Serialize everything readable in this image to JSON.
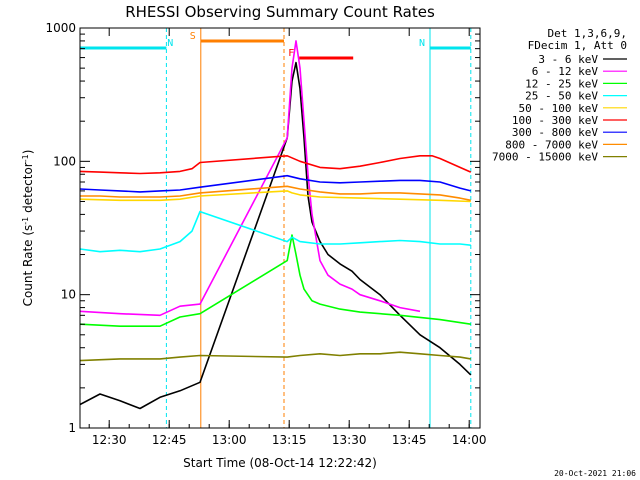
{
  "chart_data": {
    "type": "line",
    "title": "RHESSI Observing Summary Count Rates",
    "xlabel": "Start Time (08-Oct-14 12:22:42)",
    "ylabel_parts": [
      "Count Rate (s",
      "-1",
      " detector",
      "-1",
      ")"
    ],
    "yscale": "log",
    "ylim": [
      1,
      1000
    ],
    "xlim_minutes": [
      0,
      100
    ],
    "x_ticks": [
      {
        "label": "12:30",
        "minute": 7.3
      },
      {
        "label": "12:45",
        "minute": 22.3
      },
      {
        "label": "13:00",
        "minute": 37.3
      },
      {
        "label": "13:15",
        "minute": 52.3
      },
      {
        "label": "13:30",
        "minute": 67.3
      },
      {
        "label": "13:45",
        "minute": 82.3
      },
      {
        "label": "14:00",
        "minute": 97.3
      }
    ],
    "y_ticks": [
      {
        "label": "1",
        "value": 1
      },
      {
        "label": "10",
        "value": 10
      },
      {
        "label": "100",
        "value": 100
      },
      {
        "label": "1000",
        "value": 1000
      }
    ],
    "legend_header": [
      "Det 1,3,6,9,",
      "FDecim 1, Att 0"
    ],
    "legend_position": "right",
    "annotations": [
      {
        "label": "N",
        "type": "night",
        "color": "#00e5ee",
        "start": 0,
        "end": 21.6,
        "marker_minute": 21.3
      },
      {
        "label": "N",
        "type": "night",
        "color": "#00e5ee",
        "start": 87.5,
        "end": 97.7,
        "marker_minute": 87.5
      },
      {
        "label": "S",
        "type": "saa",
        "color": "#ff7f00",
        "start": 30.2,
        "end": 51.0,
        "marker_minute": 30.2
      },
      {
        "label": "F",
        "type": "flare",
        "color": "#ff0000",
        "start": 54.8,
        "end": 68.3,
        "marker_minute": 54.8
      }
    ],
    "series": [
      {
        "name": "3 - 6 keV",
        "color": "#000000",
        "x": [
          0,
          5,
          10,
          15,
          20,
          25,
          30,
          51.8,
          53,
          54,
          55,
          56,
          57,
          58,
          60,
          62,
          65,
          68,
          70,
          75,
          80,
          85,
          90,
          95,
          97.7
        ],
        "y": [
          1.5,
          1.8,
          1.6,
          1.4,
          1.7,
          1.9,
          2.2,
          150,
          400,
          550,
          350,
          150,
          55,
          35,
          25,
          20,
          17,
          15,
          13,
          10,
          7,
          5,
          4,
          3,
          2.5
        ]
      },
      {
        "name": "6 - 12 keV",
        "color": "#ff00ff",
        "x": [
          0,
          10,
          20,
          25,
          30,
          51.8,
          53,
          54,
          55,
          56,
          57,
          58,
          60,
          62,
          65,
          68,
          70,
          75,
          80,
          85
        ],
        "y": [
          7.5,
          7.2,
          7.0,
          8.2,
          8.5,
          150,
          500,
          800,
          500,
          200,
          80,
          40,
          18,
          14,
          12,
          11,
          10,
          9,
          8,
          7.5
        ]
      },
      {
        "name": "12 - 25 keV",
        "color": "#00ff00",
        "x": [
          0,
          10,
          20,
          25,
          30,
          51.8,
          53,
          54,
          55,
          56,
          58,
          60,
          65,
          70,
          80,
          90,
          97.7
        ],
        "y": [
          6.0,
          5.8,
          5.8,
          6.8,
          7.2,
          18,
          28,
          20,
          14,
          11,
          9,
          8.5,
          7.8,
          7.4,
          7.0,
          6.5,
          6.0
        ]
      },
      {
        "name": "25 - 50 keV",
        "color": "#00ffff",
        "x": [
          0,
          5,
          10,
          15,
          20,
          25,
          28,
          30,
          51.8,
          53,
          55,
          60,
          65,
          70,
          75,
          80,
          85,
          90,
          95,
          97.7
        ],
        "y": [
          22,
          21,
          21.5,
          21,
          22,
          25,
          30,
          42,
          25,
          27,
          25,
          24,
          24,
          24.5,
          25,
          25.5,
          25,
          24,
          24,
          23.5
        ]
      },
      {
        "name": "50 - 100 keV",
        "color": "#ffd700",
        "x": [
          0,
          10,
          20,
          25,
          30,
          51.8,
          53,
          55,
          60,
          70,
          80,
          90,
          97.7
        ],
        "y": [
          52,
          51,
          51,
          52,
          55,
          60,
          58,
          56,
          54,
          53,
          52,
          51,
          50
        ]
      },
      {
        "name": "100 - 300 keV",
        "color": "#ff0000",
        "x": [
          0,
          5,
          10,
          15,
          20,
          25,
          28,
          30,
          51.8,
          55,
          60,
          65,
          70,
          75,
          80,
          85,
          88,
          90,
          95,
          97.7
        ],
        "y": [
          84,
          83,
          82,
          81,
          82,
          84,
          88,
          98,
          110,
          100,
          90,
          88,
          92,
          98,
          105,
          110,
          110,
          105,
          90,
          83
        ]
      },
      {
        "name": "300 - 800 keV",
        "color": "#0000ff",
        "x": [
          0,
          5,
          10,
          15,
          20,
          25,
          30,
          51.8,
          55,
          60,
          65,
          70,
          75,
          80,
          85,
          90,
          95,
          97.7
        ],
        "y": [
          62,
          61,
          60,
          59,
          60,
          61,
          64,
          78,
          74,
          70,
          69,
          70,
          71,
          72,
          72,
          70,
          63,
          60
        ]
      },
      {
        "name": "800 - 7000 keV",
        "color": "#ff8c00",
        "x": [
          0,
          5,
          10,
          15,
          20,
          25,
          30,
          51.8,
          55,
          60,
          65,
          70,
          75,
          80,
          85,
          90,
          95,
          97.7
        ],
        "y": [
          55,
          55,
          54,
          54,
          54,
          55,
          58,
          65,
          62,
          59,
          57,
          57,
          58,
          58,
          57,
          56,
          53,
          51
        ]
      },
      {
        "name": "7000 - 15000 keV",
        "color": "#808000",
        "x": [
          0,
          10,
          20,
          25,
          30,
          51.8,
          55,
          60,
          65,
          70,
          75,
          80,
          85,
          90,
          95,
          97.7
        ],
        "y": [
          3.2,
          3.3,
          3.3,
          3.4,
          3.5,
          3.4,
          3.5,
          3.6,
          3.5,
          3.6,
          3.6,
          3.7,
          3.6,
          3.5,
          3.4,
          3.3
        ]
      }
    ]
  },
  "footer": {
    "timestamp": "20-Oct-2021 21:06"
  }
}
